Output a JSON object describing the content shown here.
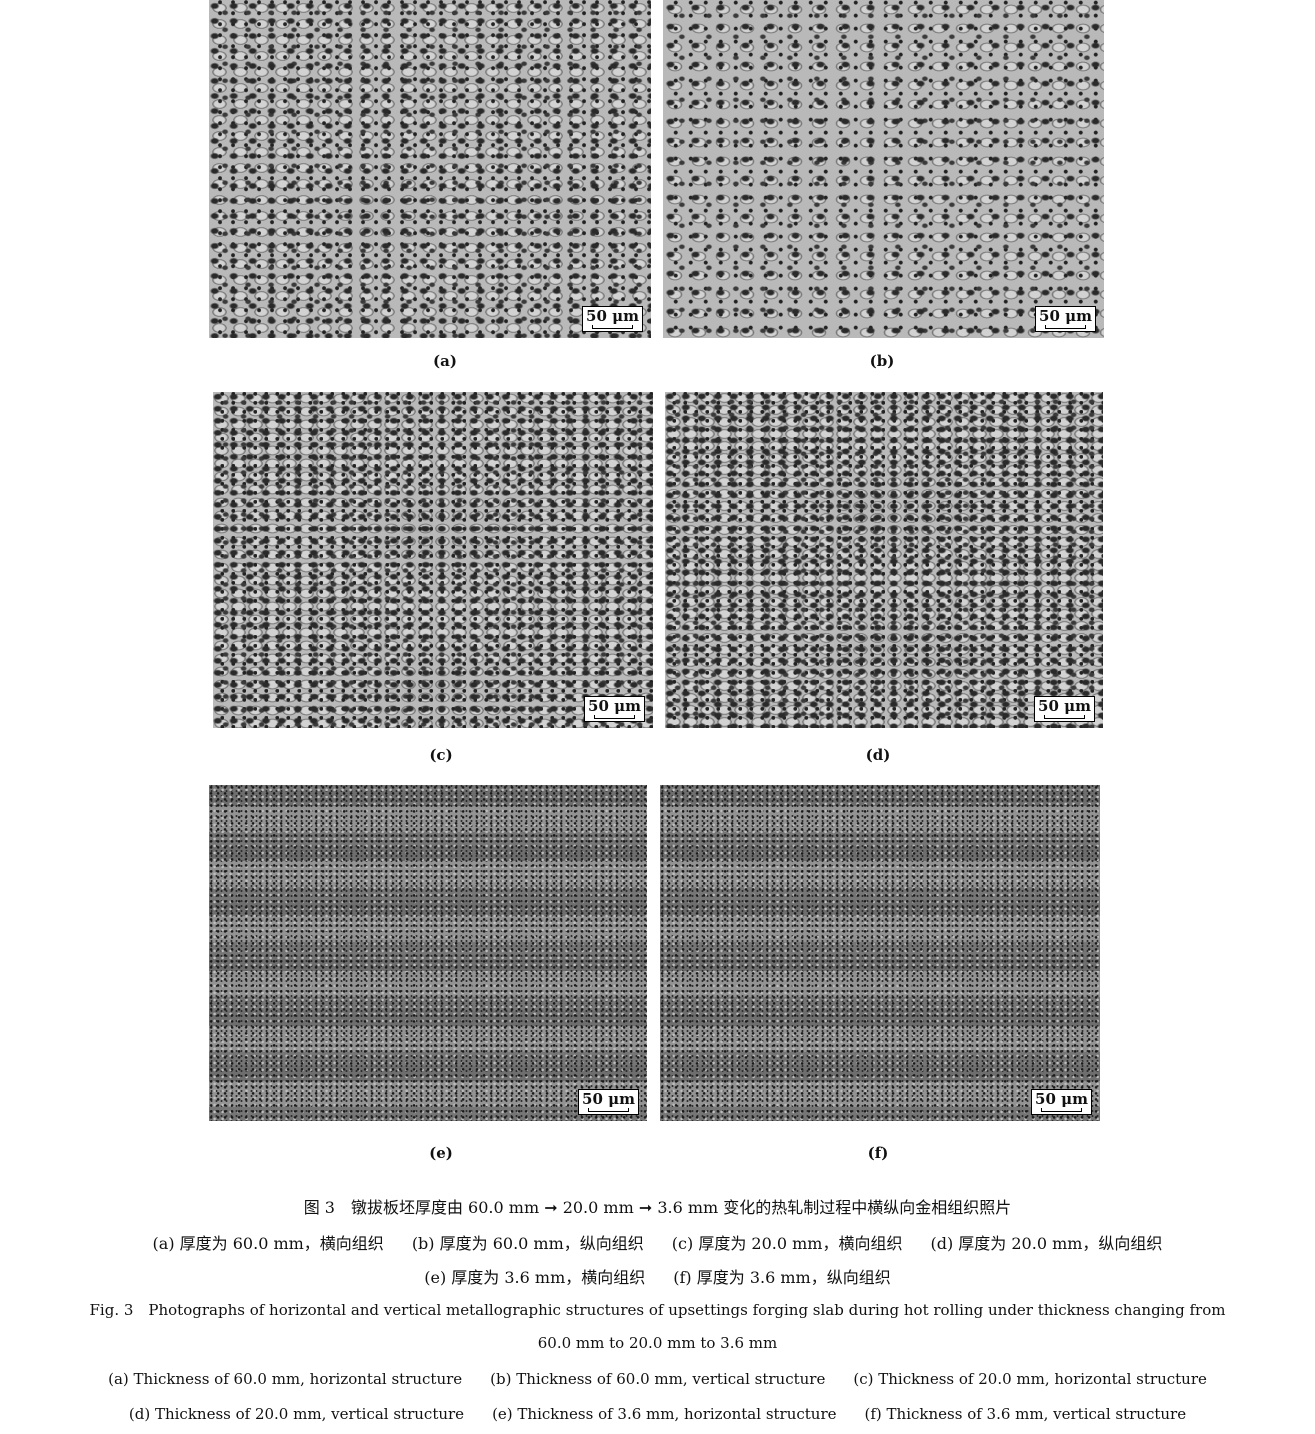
{
  "panels": [
    {
      "label": "(a)",
      "scale": "50 μm"
    },
    {
      "label": "(b)",
      "scale": "50 μm"
    },
    {
      "label": "(c)",
      "scale": "50 μm"
    },
    {
      "label": "(d)",
      "scale": "50 μm"
    },
    {
      "label": "(e)",
      "scale": "50 μm"
    },
    {
      "label": "(f)",
      "scale": "50 μm"
    }
  ],
  "caption_cn": {
    "title": "图 3　镦拔板坯厚度由 60.0 mm ➞ 20.0 mm ➞ 3.6 mm 变化的热轧制过程中横纵向金相组织照片",
    "items": [
      "(a) 厚度为 60.0 mm，横向组织",
      "(b) 厚度为 60.0 mm，纵向组织",
      "(c) 厚度为 20.0 mm，横向组织",
      "(d) 厚度为 20.0 mm，纵向组织",
      "(e) 厚度为 3.6 mm，横向组织",
      "(f) 厚度为 3.6 mm，纵向组织"
    ]
  },
  "caption_en": {
    "title_line1": "Fig. 3　Photographs of horizontal and vertical metallographic structures of upsettings forging slab during hot rolling under thickness changing from",
    "title_line2": "60.0 mm to 20.0 mm to 3.6 mm",
    "items": [
      "(a) Thickness of 60.0 mm, horizontal structure",
      "(b) Thickness of 60.0 mm, vertical structure",
      "(c) Thickness of 20.0 mm, horizontal structure",
      "(d) Thickness of 20.0 mm, vertical structure",
      "(e) Thickness of 3.6 mm, horizontal structure",
      "(f) Thickness of 3.6 mm, vertical structure"
    ]
  }
}
